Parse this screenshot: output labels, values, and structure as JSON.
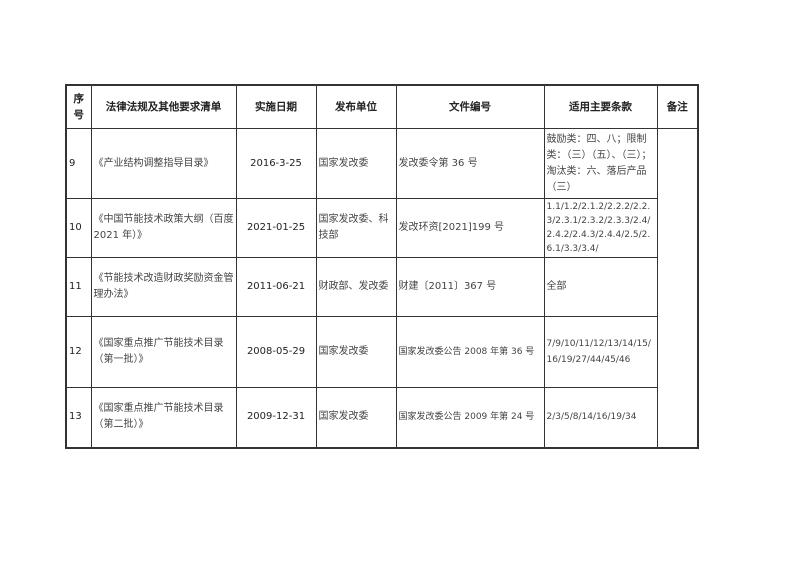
{
  "headers": [
    "序号",
    "法律法规及其他要求清单",
    "实施日期",
    "发布单位",
    "文件编号",
    "适用主要条款",
    "备注"
  ],
  "rows": [
    {
      "no": "9",
      "name": "《产业结构调整指导目录》",
      "date": "2016-3-25",
      "issuer": "国家发改委",
      "doc": "发改委令第 36 号",
      "clauses": "鼓励类：四、八；限制类：（三）（五）、（三）；淘汰类：六、落后产品（三）"
    },
    {
      "no": "10",
      "name": "《中国节能技术政策大纲（百度2021 年）》",
      "date": "2021-01-25",
      "issuer": "国家发改委、科技部",
      "doc": "发改环资[2021]199 号",
      "clauses": "1.1/1.2/2.1.2/2.2.2/2.2.3/2.3.1/2.3.2/2.3.3/2.4/2.4.2/2.4.3/2.4.4/2.5/2.6.1/3.3/3.4/"
    },
    {
      "no": "11",
      "name": "《节能技术改造财政奖励资金管理办法》",
      "date": "2011-06-21",
      "issuer": "财政部、发改委",
      "doc": "财建〔2011〕367 号",
      "clauses": "全部"
    },
    {
      "no": "12",
      "name": "《国家重点推广节能技术目录（第一批）》",
      "date": "2008-05-29",
      "issuer": "国家发改委",
      "doc": "国家发改委公告 2008 年第 36 号",
      "clauses": "7/9/10/11/12/13/14/15/16/19/27/44/45/46"
    },
    {
      "no": "13",
      "name": "《国家重点推广节能技术目录（第二批）》",
      "date": "2009-12-31",
      "issuer": "国家发改委",
      "doc": "国家发改委公告 2009 年第 24 号",
      "clauses": "2/3/5/8/14/16/19/34"
    }
  ]
}
